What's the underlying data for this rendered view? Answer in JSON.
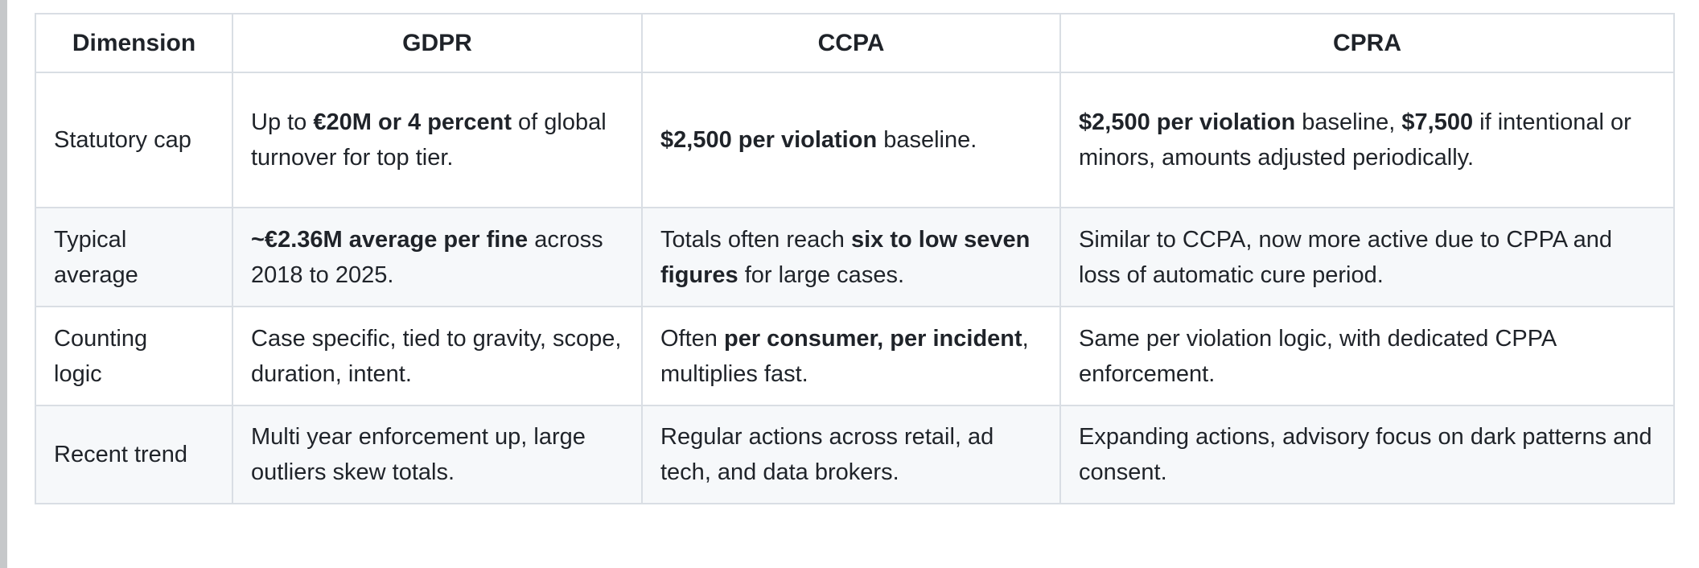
{
  "colors": {
    "row_stripe": "#f6f8fa",
    "border": "#d9dee4",
    "text": "#1f2329",
    "scrollbar": "#c6c8ca",
    "background": "#ffffff"
  },
  "table": {
    "columns": [
      {
        "label": "Dimension"
      },
      {
        "label": "GDPR"
      },
      {
        "label": "CCPA"
      },
      {
        "label": "CPRA"
      }
    ],
    "rows": [
      {
        "dimension": "Statutory cap",
        "cells": [
          {
            "segments": [
              {
                "text": "Up to ",
                "bold": false
              },
              {
                "text": "€20M or 4 percent",
                "bold": true
              },
              {
                "text": " of global turnover for top tier.",
                "bold": false
              }
            ]
          },
          {
            "segments": [
              {
                "text": "$2,500 per violation",
                "bold": true
              },
              {
                "text": " baseline.",
                "bold": false
              }
            ]
          },
          {
            "segments": [
              {
                "text": "$2,500 per violation",
                "bold": true
              },
              {
                "text": " baseline, ",
                "bold": false
              },
              {
                "text": "$7,500",
                "bold": true
              },
              {
                "text": " if intentional or minors, amounts adjusted periodically.",
                "bold": false
              }
            ]
          }
        ]
      },
      {
        "dimension": "Typical average",
        "cells": [
          {
            "segments": [
              {
                "text": "~€2.36M average per fine",
                "bold": true
              },
              {
                "text": " across 2018 to 2025.",
                "bold": false
              }
            ]
          },
          {
            "segments": [
              {
                "text": "Totals often reach ",
                "bold": false
              },
              {
                "text": "six to low seven figures",
                "bold": true
              },
              {
                "text": " for large cases.",
                "bold": false
              }
            ]
          },
          {
            "segments": [
              {
                "text": "Similar to CCPA, now more active due to CPPA and loss of automatic cure period.",
                "bold": false
              }
            ]
          }
        ]
      },
      {
        "dimension": "Counting logic",
        "cells": [
          {
            "segments": [
              {
                "text": "Case specific, tied to gravity, scope, duration, intent.",
                "bold": false
              }
            ]
          },
          {
            "segments": [
              {
                "text": "Often ",
                "bold": false
              },
              {
                "text": "per consumer, per incident",
                "bold": true
              },
              {
                "text": ", multiplies fast.",
                "bold": false
              }
            ]
          },
          {
            "segments": [
              {
                "text": "Same per violation logic, with dedicated CPPA enforcement.",
                "bold": false
              }
            ]
          }
        ]
      },
      {
        "dimension": "Recent trend",
        "cells": [
          {
            "segments": [
              {
                "text": "Multi year enforcement up, large outliers skew totals.",
                "bold": false
              }
            ]
          },
          {
            "segments": [
              {
                "text": "Regular actions across retail, ad tech, and data brokers.",
                "bold": false
              }
            ]
          },
          {
            "segments": [
              {
                "text": "Expanding actions, advisory focus on dark patterns and consent.",
                "bold": false
              }
            ]
          }
        ]
      }
    ]
  }
}
